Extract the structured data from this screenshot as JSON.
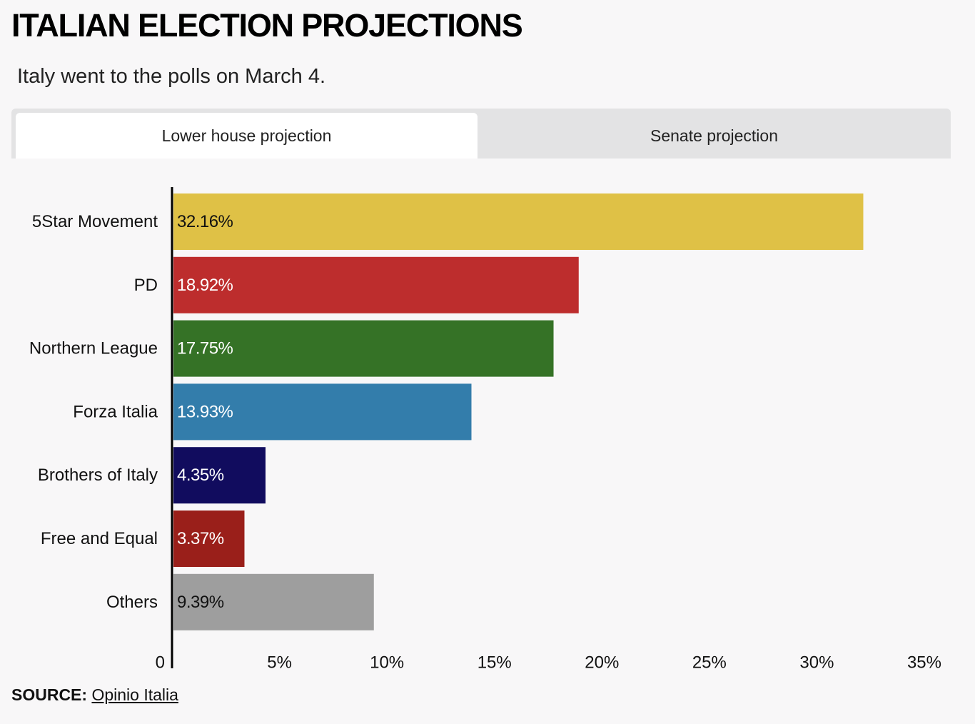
{
  "title": "ITALIAN ELECTION PROJECTIONS",
  "subtitle": "Italy went to the polls on March 4.",
  "tabs": [
    {
      "label": "Lower house projection",
      "active": true
    },
    {
      "label": "Senate projection",
      "active": false
    }
  ],
  "source": {
    "label": "SOURCE:",
    "link_text": "Opinio Italia"
  },
  "chart_data": {
    "type": "bar",
    "orientation": "horizontal",
    "categories": [
      "5Star Movement",
      "PD",
      "Northern League",
      "Forza Italia",
      "Brothers of Italy",
      "Free and Equal",
      "Others"
    ],
    "values": [
      32.16,
      18.92,
      17.75,
      13.93,
      4.35,
      3.37,
      9.39
    ],
    "value_labels": [
      "32.16%",
      "18.92%",
      "17.75%",
      "13.93%",
      "4.35%",
      "3.37%",
      "9.39%"
    ],
    "colors": [
      "#dfc146",
      "#bd2d2d",
      "#357226",
      "#337dab",
      "#110c5e",
      "#9a1f1a",
      "#9e9e9e"
    ],
    "label_colors": [
      "#111111",
      "#ffffff",
      "#ffffff",
      "#ffffff",
      "#ffffff",
      "#ffffff",
      "#111111"
    ],
    "xlim": [
      0,
      35
    ],
    "xticks": [
      0,
      5,
      10,
      15,
      20,
      25,
      30,
      35
    ],
    "xtick_labels": [
      "0",
      "5%",
      "10%",
      "15%",
      "20%",
      "25%",
      "30%",
      "35%"
    ],
    "grid": false,
    "legend": false
  }
}
